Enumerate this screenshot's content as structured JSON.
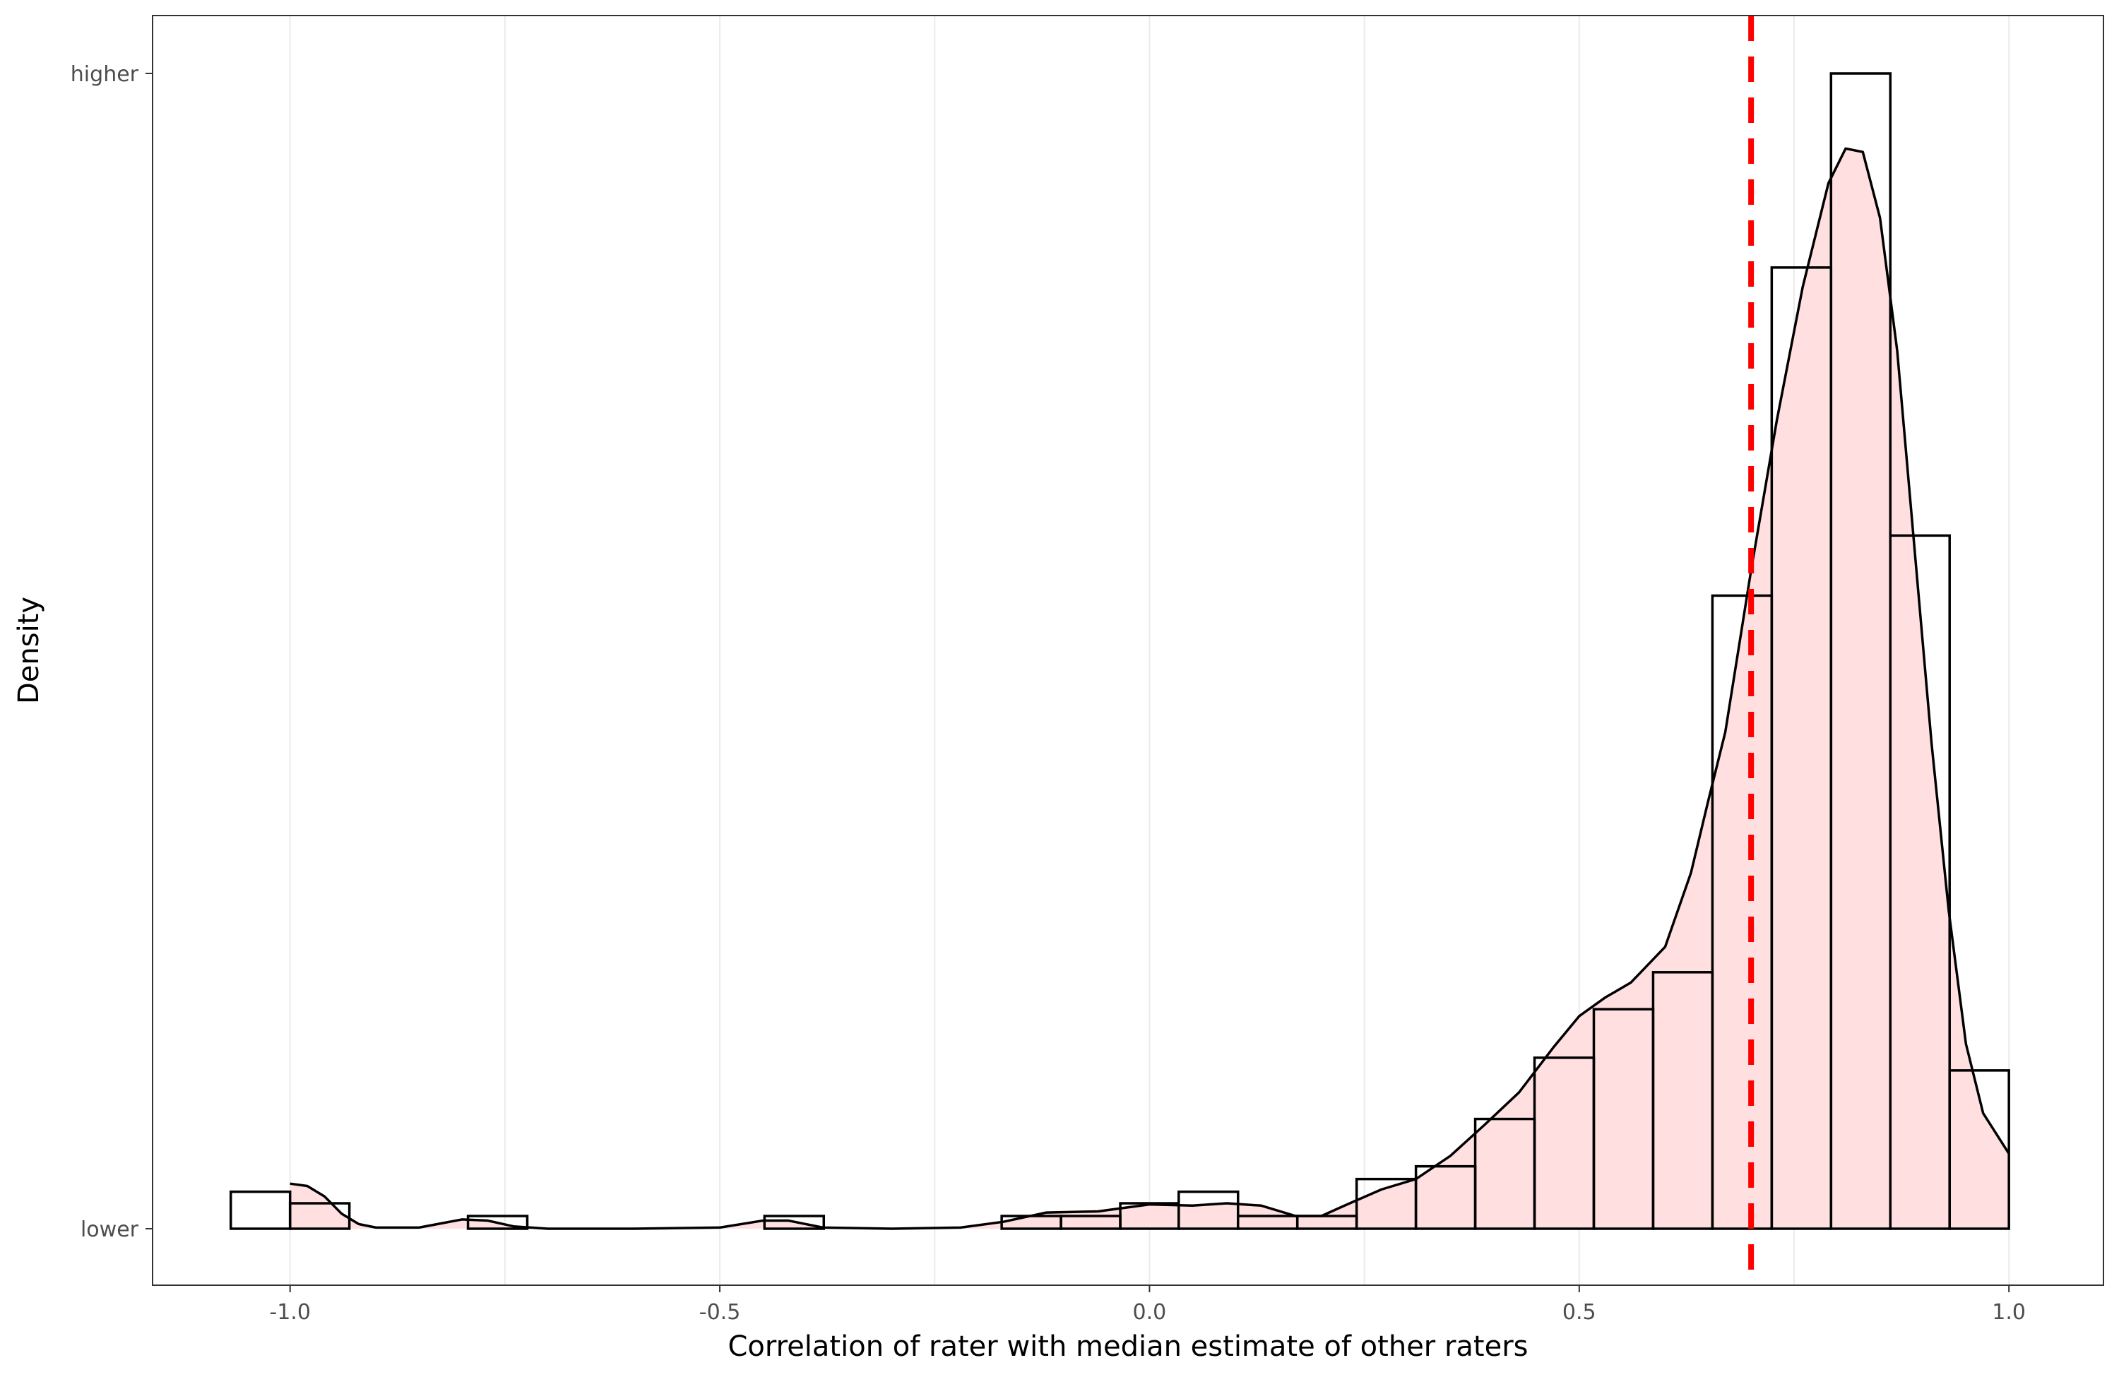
{
  "chart_data": {
    "type": "histogram",
    "title": "",
    "xlabel": "Correlation of rater with median estimate of other raters",
    "ylabel": "Density",
    "xlim": [
      -1.16,
      1.11
    ],
    "ylim": [
      0,
      1.05
    ],
    "x_ticks": [
      -1.0,
      -0.5,
      0.0,
      0.5,
      1.0
    ],
    "x_tick_labels": [
      "-1.0",
      "-0.5",
      "0.0",
      "0.5",
      "1.0"
    ],
    "y_tick_labels": [
      "lower",
      "higher"
    ],
    "y_tick_values": [
      0,
      1
    ],
    "grid": "vertical major and minor",
    "bin_width": 0.069,
    "bins": [
      {
        "x0": -1.069,
        "x1": -1.0,
        "value": 0.032
      },
      {
        "x0": -1.0,
        "x1": -0.931,
        "value": 0.022
      },
      {
        "x0": -0.793,
        "x1": -0.724,
        "value": 0.011
      },
      {
        "x0": -0.448,
        "x1": -0.379,
        "value": 0.011
      },
      {
        "x0": -0.172,
        "x1": -0.103,
        "value": 0.011
      },
      {
        "x0": -0.103,
        "x1": -0.034,
        "value": 0.011
      },
      {
        "x0": -0.034,
        "x1": 0.034,
        "value": 0.022
      },
      {
        "x0": 0.034,
        "x1": 0.103,
        "value": 0.032
      },
      {
        "x0": 0.103,
        "x1": 0.172,
        "value": 0.011
      },
      {
        "x0": 0.172,
        "x1": 0.241,
        "value": 0.011
      },
      {
        "x0": 0.241,
        "x1": 0.31,
        "value": 0.043
      },
      {
        "x0": 0.31,
        "x1": 0.379,
        "value": 0.054
      },
      {
        "x0": 0.379,
        "x1": 0.448,
        "value": 0.095
      },
      {
        "x0": 0.448,
        "x1": 0.517,
        "value": 0.148
      },
      {
        "x0": 0.517,
        "x1": 0.586,
        "value": 0.19
      },
      {
        "x0": 0.586,
        "x1": 0.655,
        "value": 0.222
      },
      {
        "x0": 0.655,
        "x1": 0.724,
        "value": 0.548
      },
      {
        "x0": 0.724,
        "x1": 0.793,
        "value": 0.832
      },
      {
        "x0": 0.793,
        "x1": 0.862,
        "value": 1.0
      },
      {
        "x0": 0.862,
        "x1": 0.931,
        "value": 0.6
      },
      {
        "x0": 0.931,
        "x1": 1.0,
        "value": 0.137
      }
    ],
    "density_curve": {
      "x": [
        -1.0,
        -0.98,
        -0.96,
        -0.94,
        -0.92,
        -0.9,
        -0.85,
        -0.8,
        -0.77,
        -0.74,
        -0.7,
        -0.6,
        -0.5,
        -0.45,
        -0.42,
        -0.38,
        -0.3,
        -0.22,
        -0.17,
        -0.12,
        -0.06,
        0.0,
        0.05,
        0.09,
        0.13,
        0.17,
        0.2,
        0.23,
        0.27,
        0.31,
        0.35,
        0.39,
        0.43,
        0.47,
        0.5,
        0.53,
        0.56,
        0.6,
        0.63,
        0.65,
        0.67,
        0.7,
        0.73,
        0.76,
        0.79,
        0.81,
        0.83,
        0.85,
        0.87,
        0.89,
        0.91,
        0.93,
        0.95,
        0.97,
        1.0
      ],
      "y": [
        0.039,
        0.037,
        0.028,
        0.013,
        0.004,
        0.001,
        0.001,
        0.008,
        0.007,
        0.002,
        0.0,
        0.0,
        0.001,
        0.007,
        0.007,
        0.001,
        0.0,
        0.001,
        0.006,
        0.014,
        0.015,
        0.021,
        0.02,
        0.022,
        0.02,
        0.011,
        0.011,
        0.021,
        0.034,
        0.043,
        0.063,
        0.09,
        0.118,
        0.157,
        0.184,
        0.2,
        0.213,
        0.244,
        0.308,
        0.37,
        0.43,
        0.57,
        0.7,
        0.815,
        0.905,
        0.935,
        0.932,
        0.875,
        0.76,
        0.59,
        0.42,
        0.275,
        0.16,
        0.1,
        0.065
      ]
    },
    "reference_line": {
      "x": 0.7,
      "style": "dashed",
      "color": "#ff0000"
    },
    "colors": {
      "bar_outline": "#000000",
      "density_fill": "#ffdfe0",
      "density_line": "#000000",
      "grid": "#ebebeb",
      "panel_border": "#333333"
    }
  }
}
